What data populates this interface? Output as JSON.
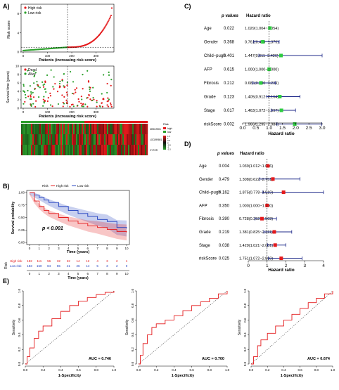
{
  "panels": {
    "A": {
      "label": "A)",
      "risk_plot": {
        "ylabel": "Risk score",
        "xlabel": "Patients (increasing risk score)",
        "legend": [
          "High risk",
          "Low risk"
        ],
        "yticks": [
          "0",
          "4",
          "8"
        ],
        "xticks": [
          "0",
          "100",
          "200",
          "300"
        ],
        "colors": {
          "high": "#e41a1c",
          "low": "#2ca02c"
        }
      },
      "survival_scatter": {
        "ylabel": "Survival time (years)",
        "xlabel": "Patients (increasing risk score)",
        "legend": [
          "Dead",
          "Alive"
        ],
        "yticks": [
          "0",
          "2",
          "4",
          "6",
          "8",
          "10"
        ],
        "xticks": [
          "0",
          "100",
          "200",
          "300"
        ],
        "colors": {
          "dead": "#e41a1c",
          "alive": "#2ca02c"
        }
      },
      "heatmap": {
        "genes": [
          "MED19901",
          "LOC899801",
          "CYTOR"
        ],
        "legend_title": "Risk",
        "legend_items": [
          "high",
          "low"
        ],
        "scale": [
          "1.5",
          "1",
          "0.5",
          "0",
          "-0.5",
          "-1",
          "-1.5"
        ]
      }
    },
    "B": {
      "label": "B)",
      "ylabel": "Survival probability",
      "xlabel": "Time (years)",
      "legend_title": "Risk",
      "legend": [
        "High risk",
        "Low risk"
      ],
      "pvalue": "p < 0.001",
      "yticks": [
        "0.00",
        "0.25",
        "0.50",
        "0.75",
        "1.00"
      ],
      "xticks": [
        "0",
        "1",
        "2",
        "3",
        "4",
        "5",
        "6",
        "7",
        "8",
        "9",
        "10"
      ],
      "risk_table": {
        "title": "Risk",
        "rows": [
          {
            "name": "High risk",
            "values": [
              "182",
              "111",
              "56",
              "32",
              "22",
              "14",
              "12",
              "4",
              "3",
              "2",
              "1"
            ],
            "color": "#e41a1c"
          },
          {
            "name": "Low risk",
            "values": [
              "183",
              "150",
              "84",
              "55",
              "41",
              "26",
              "14",
              "5",
              "3",
              "2",
              "0"
            ],
            "color": "#1f3fbf"
          }
        ],
        "xlabel": "Time (years)"
      },
      "curves": {
        "high": [
          [
            0,
            1.0
          ],
          [
            0.5,
            0.83
          ],
          [
            1,
            0.72
          ],
          [
            1.5,
            0.64
          ],
          [
            2,
            0.58
          ],
          [
            3,
            0.5
          ],
          [
            4,
            0.43
          ],
          [
            5,
            0.38
          ],
          [
            6,
            0.33
          ],
          [
            7,
            0.3
          ],
          [
            8,
            0.26
          ],
          [
            9,
            0.22
          ],
          [
            10,
            0.2
          ]
        ],
        "low": [
          [
            0,
            1.0
          ],
          [
            0.5,
            0.95
          ],
          [
            1,
            0.9
          ],
          [
            1.5,
            0.85
          ],
          [
            2,
            0.8
          ],
          [
            3,
            0.72
          ],
          [
            4,
            0.64
          ],
          [
            5,
            0.58
          ],
          [
            6,
            0.52
          ],
          [
            7,
            0.46
          ],
          [
            8,
            0.42
          ],
          [
            9,
            0.3
          ],
          [
            10,
            0.28
          ]
        ]
      },
      "colors": {
        "high": "#e41a1c",
        "low": "#1f3fbf"
      }
    },
    "C": {
      "label": "C)",
      "col_p": "p values",
      "col_hr": "Hazard ratio",
      "axis_label": "Hazard ratio",
      "xticks": [
        "0.0",
        "0.5",
        "1.0",
        "1.5",
        "2.0",
        "2.5",
        "3.0"
      ],
      "rows": [
        {
          "name": "Age",
          "p": "0.022",
          "hr_text": "1.029(1.004~1.054)",
          "hr": 1.029,
          "lo": 1.004,
          "hi": 1.054
        },
        {
          "name": "Gender",
          "p": "0.368",
          "hr_text": "0.761(0.420~1.379)",
          "hr": 0.761,
          "lo": 0.42,
          "hi": 1.379
        },
        {
          "name": "Child~pugh",
          "p": "0.401",
          "hr_text": "1.447(0.611~3.426)",
          "hr": 1.447,
          "lo": 0.611,
          "hi": 3.426
        },
        {
          "name": "AFP",
          "p": "0.615",
          "hr_text": "1.000(1.000~1.000)",
          "hr": 1.0,
          "lo": 1.0,
          "hi": 1.0
        },
        {
          "name": "Fibrosis",
          "p": "0.212",
          "hr_text": "0.686(0.380~1.239)",
          "hr": 0.686,
          "lo": 0.38,
          "hi": 1.239
        },
        {
          "name": "Grade",
          "p": "0.123",
          "hr_text": "1.405(0.912~2.164)",
          "hr": 1.405,
          "lo": 0.912,
          "hi": 2.164
        },
        {
          "name": "Stage",
          "p": "0.017",
          "hr_text": "1.463(1.072~1.997)",
          "hr": 1.463,
          "lo": 1.072,
          "hi": 1.997
        },
        {
          "name": "riskScore",
          "p": "0.002",
          "hr_text": "1.966(1.295~2.984)",
          "hr": 1.966,
          "lo": 1.295,
          "hi": 2.984
        }
      ],
      "colors": {
        "point": "#2ecc40",
        "line": "#1f2a8a"
      }
    },
    "D": {
      "label": "D)",
      "col_p": "p values",
      "col_hr": "Hazard ratio",
      "axis_label": "Hazard ratio",
      "xticks": [
        "0",
        "1",
        "2",
        "3",
        "4"
      ],
      "rows": [
        {
          "name": "Age",
          "p": "0.004",
          "hr_text": "1.039(1.012~1.066)",
          "hr": 1.039,
          "lo": 1.012,
          "hi": 1.066
        },
        {
          "name": "Gender",
          "p": "0.479",
          "hr_text": "1.308(0.622~2.751)",
          "hr": 1.308,
          "lo": 0.622,
          "hi": 2.751
        },
        {
          "name": "Child~pugh",
          "p": "0.162",
          "hr_text": "1.875(0.778~4.519)",
          "hr": 1.875,
          "lo": 0.778,
          "hi": 4.519
        },
        {
          "name": "AFP",
          "p": "0.350",
          "hr_text": "1.000(1.000~1.000)",
          "hr": 1.0,
          "lo": 1.0,
          "hi": 1.0
        },
        {
          "name": "Fibrosis",
          "p": "0.390",
          "hr_text": "0.728(0.352~1.503)",
          "hr": 0.728,
          "lo": 0.352,
          "hi": 1.503
        },
        {
          "name": "Grade",
          "p": "0.219",
          "hr_text": "1.381(0.825~2.311)",
          "hr": 1.381,
          "lo": 0.825,
          "hi": 2.311
        },
        {
          "name": "Stage",
          "p": "0.038",
          "hr_text": "1.429(1.021~2.001)",
          "hr": 1.429,
          "lo": 1.021,
          "hi": 2.001
        },
        {
          "name": "riskScore",
          "p": "0.025",
          "hr_text": "1.751(1.072~2.860)",
          "hr": 1.751,
          "lo": 1.072,
          "hi": 2.86
        }
      ],
      "colors": {
        "point": "#e41a1c",
        "line": "#1f2a8a"
      }
    },
    "E": {
      "label": "E)",
      "rocs": [
        {
          "auc": "AUC = 0.746",
          "xlabel": "1-Specificity",
          "ylabel": "Sensitivity",
          "points": [
            [
              0,
              0
            ],
            [
              0.02,
              0.1
            ],
            [
              0.05,
              0.22
            ],
            [
              0.1,
              0.35
            ],
            [
              0.15,
              0.45
            ],
            [
              0.2,
              0.52
            ],
            [
              0.3,
              0.62
            ],
            [
              0.4,
              0.72
            ],
            [
              0.5,
              0.8
            ],
            [
              0.6,
              0.86
            ],
            [
              0.7,
              0.91
            ],
            [
              0.8,
              0.95
            ],
            [
              0.9,
              0.98
            ],
            [
              1,
              1
            ]
          ]
        },
        {
          "auc": "AUC = 0.700",
          "xlabel": "1-Specificity",
          "ylabel": "Sensitivity",
          "points": [
            [
              0,
              0
            ],
            [
              0.02,
              0.12
            ],
            [
              0.05,
              0.28
            ],
            [
              0.1,
              0.4
            ],
            [
              0.15,
              0.5
            ],
            [
              0.2,
              0.55
            ],
            [
              0.3,
              0.6
            ],
            [
              0.4,
              0.66
            ],
            [
              0.5,
              0.73
            ],
            [
              0.6,
              0.8
            ],
            [
              0.7,
              0.85
            ],
            [
              0.8,
              0.9
            ],
            [
              0.9,
              0.96
            ],
            [
              1,
              1
            ]
          ]
        },
        {
          "auc": "AUC = 0.674",
          "xlabel": "1-Specificity",
          "ylabel": "Sensitivity",
          "points": [
            [
              0,
              0
            ],
            [
              0.03,
              0.1
            ],
            [
              0.08,
              0.25
            ],
            [
              0.12,
              0.33
            ],
            [
              0.2,
              0.42
            ],
            [
              0.3,
              0.52
            ],
            [
              0.4,
              0.6
            ],
            [
              0.5,
              0.68
            ],
            [
              0.6,
              0.76
            ],
            [
              0.7,
              0.84
            ],
            [
              0.8,
              0.9
            ],
            [
              0.9,
              0.96
            ],
            [
              1,
              1
            ]
          ]
        }
      ],
      "ticks": [
        "0.0",
        "0.2",
        "0.4",
        "0.6",
        "0.8",
        "1.0"
      ],
      "color": "#e41a1c"
    }
  }
}
